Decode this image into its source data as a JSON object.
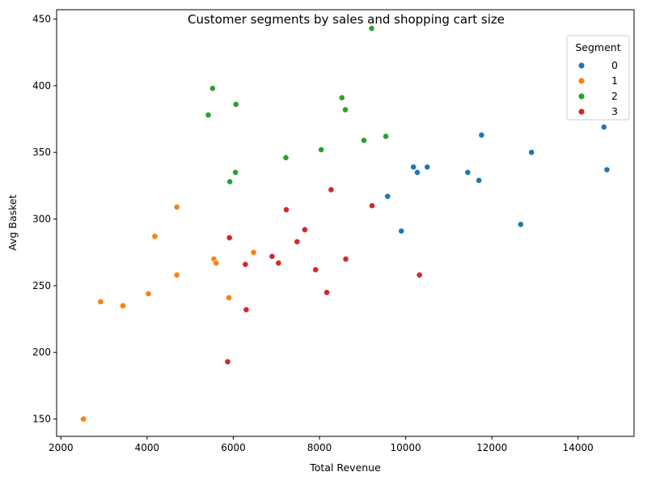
{
  "chart_data": {
    "type": "scatter",
    "title": "Customer segments by sales and shopping cart size",
    "xlabel": "Total Revenue",
    "ylabel": "Avg Basket",
    "xlim": [
      1900,
      15300
    ],
    "ylim": [
      137,
      457
    ],
    "xticks": [
      2000,
      4000,
      6000,
      8000,
      10000,
      12000,
      14000
    ],
    "yticks": [
      150,
      200,
      250,
      300,
      350,
      400,
      450
    ],
    "grid": false,
    "legend": {
      "title": "Segment",
      "position": "top-right"
    },
    "series": [
      {
        "name": "0",
        "color": "#1f77b4",
        "points": [
          [
            9900,
            291
          ],
          [
            9580,
            317
          ],
          [
            10180,
            339
          ],
          [
            10270,
            335
          ],
          [
            10500,
            339
          ],
          [
            11440,
            335
          ],
          [
            11700,
            329
          ],
          [
            11760,
            363
          ],
          [
            12670,
            296
          ],
          [
            12920,
            350
          ],
          [
            14600,
            369
          ],
          [
            14670,
            337
          ]
        ]
      },
      {
        "name": "1",
        "color": "#ff7f0e",
        "points": [
          [
            2520,
            150
          ],
          [
            2920,
            238
          ],
          [
            3440,
            235
          ],
          [
            4030,
            244
          ],
          [
            4180,
            287
          ],
          [
            4690,
            309
          ],
          [
            4690,
            258
          ],
          [
            5550,
            270
          ],
          [
            5600,
            267
          ],
          [
            5900,
            241
          ],
          [
            6470,
            275
          ]
        ]
      },
      {
        "name": "2",
        "color": "#2ca02c",
        "points": [
          [
            5420,
            378
          ],
          [
            5520,
            398
          ],
          [
            5920,
            328
          ],
          [
            6050,
            335
          ],
          [
            6060,
            386
          ],
          [
            7220,
            346
          ],
          [
            8040,
            352
          ],
          [
            8520,
            391
          ],
          [
            8600,
            382
          ],
          [
            9030,
            359
          ],
          [
            9210,
            443
          ],
          [
            9540,
            362
          ]
        ]
      },
      {
        "name": "3",
        "color": "#d62728",
        "points": [
          [
            5870,
            193
          ],
          [
            5910,
            286
          ],
          [
            6280,
            266
          ],
          [
            6300,
            232
          ],
          [
            6900,
            272
          ],
          [
            7050,
            267
          ],
          [
            7230,
            307
          ],
          [
            7480,
            283
          ],
          [
            7660,
            292
          ],
          [
            7910,
            262
          ],
          [
            8170,
            245
          ],
          [
            8270,
            322
          ],
          [
            8610,
            270
          ],
          [
            9220,
            310
          ],
          [
            10320,
            258
          ]
        ]
      }
    ]
  }
}
